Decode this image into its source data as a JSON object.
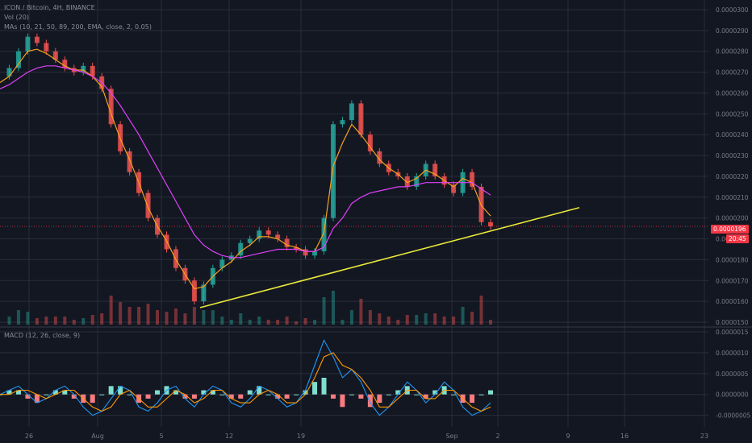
{
  "legend": {
    "symbol": "ICON / Bitcoin, 4H, BINANCE",
    "volume": "Vol (20)",
    "mas": "MAs (10, 21, 50, 89, 200, EMA, close, 2, 0.05)",
    "macd": "MACD (12, 26, close, 9)"
  },
  "price_badge": {
    "price": "0.0000196",
    "countdown": "20:45"
  },
  "colors": {
    "background": "#131722",
    "grid": "#2a2e39",
    "candle_up": "#26a69a",
    "candle_down": "#ef5350",
    "ma_fast": "#f7a21b",
    "ma_slow": "#e040fb",
    "trendline": "#e8e83a",
    "price_line": "#f23645",
    "macd_line": "#2196f3",
    "signal_line": "#ff9800",
    "hist_up": "#80ded0",
    "hist_down": "#f77c80"
  },
  "chart_data": {
    "type": "line",
    "title": "ICON / Bitcoin, 4H, BINANCE",
    "x_labels": [
      "26",
      "Aug",
      "5",
      "12",
      "19",
      "Sep",
      "2",
      "9",
      "16",
      "23"
    ],
    "y_ticks": [
      "0.0000300",
      "0.0000290",
      "0.0000280",
      "0.0000270",
      "0.0000260",
      "0.0000250",
      "0.0000240",
      "0.0000230",
      "0.0000220",
      "0.0000210",
      "0.0000200",
      "0.0000190",
      "0.0000180",
      "0.0000170",
      "0.0000160",
      "0.0000150"
    ],
    "ylim": [
      1.5e-05,
      3e-05
    ],
    "macd_ticks": [
      "0.0000015",
      "0.0000010",
      "0.0000005",
      "0.0000000",
      "-0.0000005"
    ],
    "macd_ylim": [
      -7e-07,
      1.5e-06
    ],
    "series": [
      {
        "name": "ICON / Bitcoin",
        "values": [
          2.68e-05,
          2.72e-05,
          2.8e-05,
          2.87e-05,
          2.84e-05,
          2.8e-05,
          2.76e-05,
          2.72e-05,
          2.7e-05,
          2.73e-05,
          2.68e-05,
          2.62e-05,
          2.45e-05,
          2.32e-05,
          2.22e-05,
          2.12e-05,
          2e-05,
          1.92e-05,
          1.85e-05,
          1.76e-05,
          1.7e-05,
          1.6e-05,
          1.68e-05,
          1.76e-05,
          1.8e-05,
          1.82e-05,
          1.88e-05,
          1.9e-05,
          1.94e-05,
          1.92e-05,
          1.9e-05,
          1.86e-05,
          1.85e-05,
          1.82e-05,
          1.84e-05,
          2e-05,
          2.45e-05,
          2.47e-05,
          2.55e-05,
          2.4e-05,
          2.32e-05,
          2.26e-05,
          2.22e-05,
          2.2e-05,
          2.15e-05,
          2.2e-05,
          2.26e-05,
          2.2e-05,
          2.16e-05,
          2.12e-05,
          2.22e-05,
          2.15e-05,
          1.98e-05,
          1.96e-05
        ]
      }
    ],
    "ma_fast": [
      2.65e-05,
      2.68e-05,
      2.74e-05,
      2.8e-05,
      2.81e-05,
      2.79e-05,
      2.76e-05,
      2.73e-05,
      2.71e-05,
      2.71e-05,
      2.68e-05,
      2.63e-05,
      2.5e-05,
      2.38e-05,
      2.28e-05,
      2.17e-05,
      2.05e-05,
      1.96e-05,
      1.89e-05,
      1.8e-05,
      1.73e-05,
      1.66e-05,
      1.67e-05,
      1.72e-05,
      1.76e-05,
      1.79e-05,
      1.84e-05,
      1.87e-05,
      1.91e-05,
      1.91e-05,
      1.9e-05,
      1.87e-05,
      1.86e-05,
      1.84e-05,
      1.84e-05,
      1.93e-05,
      2.25e-05,
      2.36e-05,
      2.45e-05,
      2.4e-05,
      2.34e-05,
      2.28e-05,
      2.24e-05,
      2.21e-05,
      2.17e-05,
      2.19e-05,
      2.23e-05,
      2.21e-05,
      2.18e-05,
      2.15e-05,
      2.19e-05,
      2.17e-05,
      2.06e-05,
      2.01e-05
    ],
    "ma_slow": [
      2.62e-05,
      2.64e-05,
      2.67e-05,
      2.7e-05,
      2.72e-05,
      2.73e-05,
      2.73e-05,
      2.72e-05,
      2.71e-05,
      2.7e-05,
      2.68e-05,
      2.65e-05,
      2.6e-05,
      2.54e-05,
      2.47e-05,
      2.4e-05,
      2.32e-05,
      2.24e-05,
      2.16e-05,
      2.08e-05,
      2e-05,
      1.92e-05,
      1.87e-05,
      1.84e-05,
      1.82e-05,
      1.81e-05,
      1.81e-05,
      1.82e-05,
      1.83e-05,
      1.84e-05,
      1.85e-05,
      1.85e-05,
      1.85e-05,
      1.84e-05,
      1.84e-05,
      1.86e-05,
      1.95e-05,
      2e-05,
      2.07e-05,
      2.1e-05,
      2.12e-05,
      2.13e-05,
      2.14e-05,
      2.15e-05,
      2.15e-05,
      2.16e-05,
      2.17e-05,
      2.17e-05,
      2.17e-05,
      2.17e-05,
      2.17e-05,
      2.17e-05,
      2.14e-05,
      2.11e-05
    ],
    "trendline": {
      "start": [
        "5",
        1.57e-05
      ],
      "end": [
        "9",
        2.05e-05
      ]
    },
    "macd_line": [
      0.0,
      1e-07,
      2e-07,
      0.0,
      -2e-07,
      -1e-07,
      1e-07,
      2e-07,
      0.0,
      -3e-07,
      -5e-07,
      -4e-07,
      -1e-07,
      2e-07,
      1e-07,
      -3e-07,
      -4e-07,
      -2e-07,
      1e-07,
      2e-07,
      -1e-07,
      -3e-07,
      0.0,
      2e-07,
      1e-07,
      -2e-07,
      -3e-07,
      -1e-07,
      2e-07,
      1e-07,
      -1e-07,
      -3e-07,
      -2e-07,
      1e-07,
      7e-07,
      1.3e-06,
      9e-07,
      4e-07,
      6e-07,
      3e-07,
      -2e-07,
      -5e-07,
      -3e-07,
      0.0,
      3e-07,
      1e-07,
      -2e-07,
      0.0,
      3e-07,
      1e-07,
      -3e-07,
      -5e-07,
      -4e-07,
      -2e-07
    ],
    "signal_line": [
      0.0,
      0.0,
      1e-07,
      1e-07,
      0.0,
      -1e-07,
      0.0,
      1e-07,
      1e-07,
      -1e-07,
      -3e-07,
      -4e-07,
      -3e-07,
      0.0,
      1e-07,
      -1e-07,
      -3e-07,
      -3e-07,
      -1e-07,
      1e-07,
      0.0,
      -2e-07,
      -1e-07,
      1e-07,
      1e-07,
      -1e-07,
      -2e-07,
      -2e-07,
      0.0,
      1e-07,
      0.0,
      -2e-07,
      -2e-07,
      0.0,
      4e-07,
      9e-07,
      1e-06,
      7e-07,
      6e-07,
      4e-07,
      1e-07,
      -3e-07,
      -3e-07,
      -1e-07,
      1e-07,
      1e-07,
      -1e-07,
      -1e-07,
      1e-07,
      1e-07,
      -1e-07,
      -3e-07,
      -4e-07,
      -3e-07
    ],
    "grid": true,
    "legend_position": "top-left"
  }
}
